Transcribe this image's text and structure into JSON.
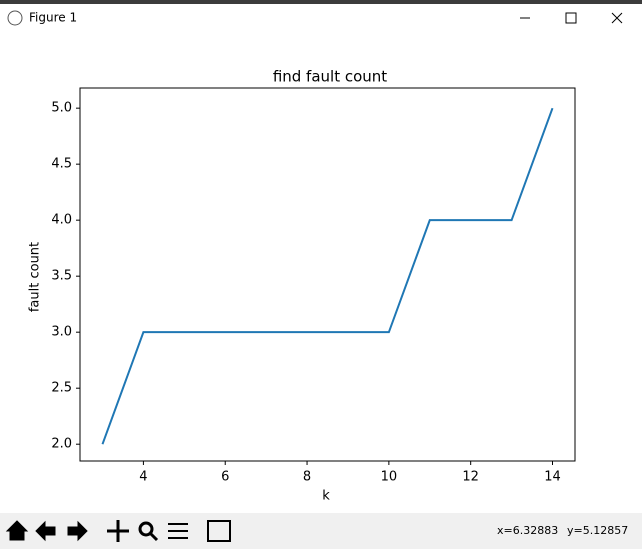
{
  "window": {
    "title": "Figure 1"
  },
  "chart_data": {
    "type": "line",
    "title": "find fault count",
    "xlabel": "k",
    "ylabel": "fault count",
    "x": [
      3,
      4,
      5,
      6,
      7,
      8,
      9,
      10,
      11,
      12,
      13,
      14
    ],
    "series": [
      {
        "color": "#1f77b4",
        "values": [
          2,
          3,
          3,
          3,
          3,
          3,
          3,
          3,
          4,
          4,
          4,
          5
        ]
      }
    ],
    "xlim": [
      2.45,
      14.55
    ],
    "ylim": [
      1.85,
      5.18
    ],
    "xticks": [
      4,
      6,
      8,
      10,
      12,
      14
    ],
    "yticks": [
      {
        "value": 2,
        "label": "2.0"
      },
      {
        "value": 2.5,
        "label": "2.5"
      },
      {
        "value": 3,
        "label": "3.0"
      },
      {
        "value": 3.5,
        "label": "3.5"
      },
      {
        "value": 4,
        "label": "4.0"
      },
      {
        "value": 4.5,
        "label": "4.5"
      },
      {
        "value": 5,
        "label": "5.0"
      }
    ],
    "grid": false
  },
  "status": {
    "x": "x=6.32883",
    "y": "y=5.12857"
  }
}
